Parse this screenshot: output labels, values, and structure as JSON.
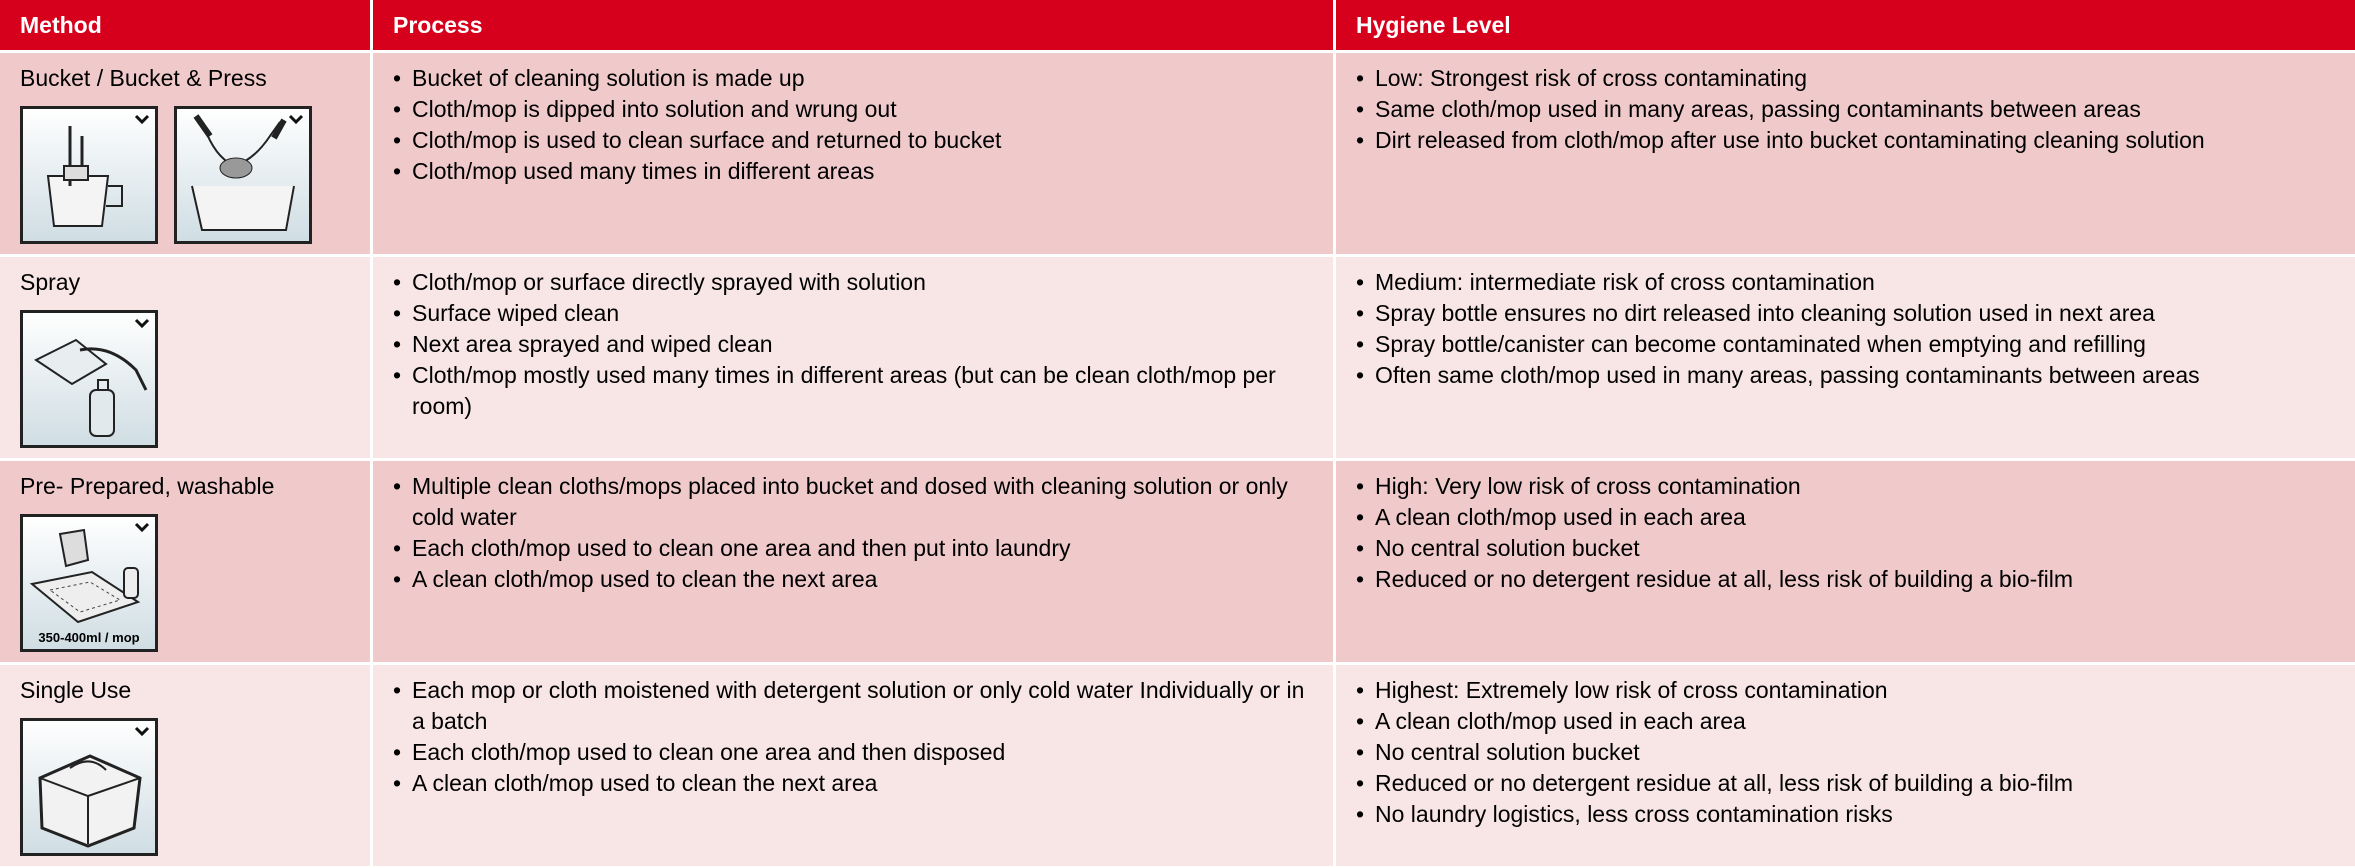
{
  "table": {
    "headers": [
      "Method",
      "Process",
      "Hygiene Level"
    ],
    "rows": [
      {
        "method": "Bucket / Bucket & Press",
        "process": [
          "Bucket of cleaning solution is made up",
          "Cloth/mop is dipped into solution and wrung out",
          "Cloth/mop is used to clean surface and returned to bucket",
          "Cloth/mop used many times in different  areas"
        ],
        "hygiene": [
          "Low: Strongest risk of cross contaminating",
          "Same cloth/mop used in many areas, passing contaminants between areas",
          "Dirt released from cloth/mop after use into bucket contaminating cleaning solution"
        ]
      },
      {
        "method": "Spray",
        "process": [
          "Cloth/mop or surface directly sprayed with solution",
          "Surface wiped clean",
          "Next area sprayed and wiped clean",
          "Cloth/mop mostly used many times in different  areas (but can be clean cloth/mop per room)"
        ],
        "hygiene": [
          "Medium: intermediate risk of cross contamination",
          "Spray bottle ensures no dirt released into cleaning solution used in next area",
          "Spray bottle/canister can become contaminated when emptying and refilling",
          "Often same cloth/mop used in many areas, passing contaminants between areas"
        ]
      },
      {
        "method": "Pre- Prepared, washable",
        "icon_label": "350-400ml / mop",
        "process": [
          "Multiple clean cloths/mops placed into  bucket and dosed with cleaning solution or only cold water",
          "Each cloth/mop used to clean one area and then put into laundry",
          "A clean cloth/mop used to clean the next area"
        ],
        "hygiene": [
          "High: Very low risk of cross contamination",
          "A clean cloth/mop used in each area",
          "No central solution bucket",
          "Reduced or no detergent residue at all, less risk of building a bio-film"
        ]
      },
      {
        "method": "Single Use",
        "process": [
          "Each mop or cloth moistened with detergent solution or only cold water  Individually or in a batch",
          "Each cloth/mop used to clean one area and then disposed",
          "A clean cloth/mop used to clean the next area"
        ],
        "hygiene": [
          "Highest: Extremely low risk of cross contamination",
          "A clean cloth/mop used in each area",
          "No central solution bucket",
          "Reduced or no detergent residue at all, less risk of building a bio-film",
          "No laundry logistics, less cross contamination risks"
        ]
      }
    ]
  }
}
